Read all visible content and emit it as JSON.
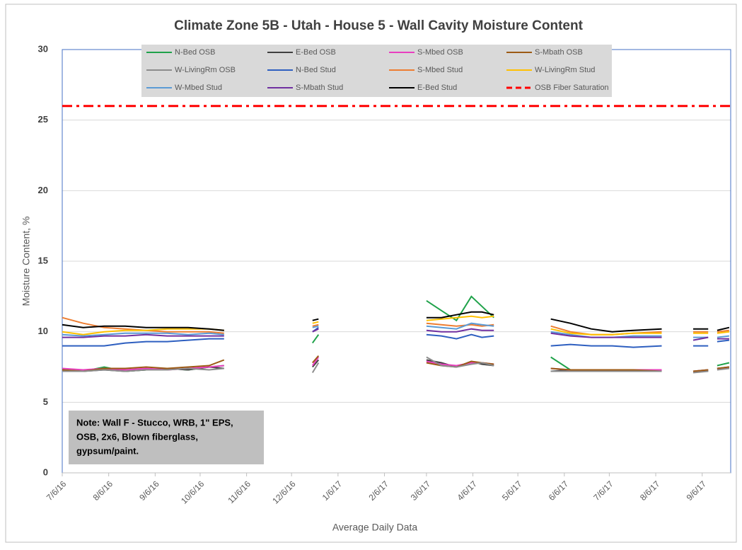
{
  "chart_data": {
    "type": "line",
    "title": "Climate Zone 5B - Utah - House 5 - Wall Cavity Moisture Content",
    "x_label": "Average Daily Data",
    "y_label": "Moisture Content, %",
    "note": [
      "Note: Wall F - Stucco, WRB, 1\" EPS,",
      "OSB, 2x6, Blown fiberglass,",
      "gypsum/paint."
    ],
    "x": [
      "2016-07-06",
      "2016-07-20",
      "2016-08-03",
      "2016-08-17",
      "2016-08-31",
      "2016-09-14",
      "2016-09-28",
      "2016-10-12",
      "2016-10-22",
      "2016-11-20",
      "2016-12-20",
      "2016-12-24",
      "2017-02-01",
      "2017-03-06",
      "2017-03-16",
      "2017-03-26",
      "2017-04-05",
      "2017-04-12",
      "2017-04-20",
      "2017-05-10",
      "2017-05-28",
      "2017-06-10",
      "2017-06-24",
      "2017-07-08",
      "2017-07-22",
      "2017-08-10",
      "2017-08-20",
      "2017-08-31",
      "2017-09-10",
      "2017-09-13",
      "2017-09-16",
      "2017-09-24"
    ],
    "xlim": [
      "2016-07-06",
      "2017-09-25"
    ],
    "xticks": [
      {
        "value": "2016-07-06",
        "label": "7/6/16"
      },
      {
        "value": "2016-08-06",
        "label": "8/6/16"
      },
      {
        "value": "2016-09-06",
        "label": "9/6/16"
      },
      {
        "value": "2016-10-06",
        "label": "10/6/16"
      },
      {
        "value": "2016-11-06",
        "label": "11/6/16"
      },
      {
        "value": "2016-12-06",
        "label": "12/6/16"
      },
      {
        "value": "2017-01-06",
        "label": "1/6/17"
      },
      {
        "value": "2017-02-06",
        "label": "2/6/17"
      },
      {
        "value": "2017-03-06",
        "label": "3/6/17"
      },
      {
        "value": "2017-04-06",
        "label": "4/6/17"
      },
      {
        "value": "2017-05-06",
        "label": "5/6/17"
      },
      {
        "value": "2017-06-06",
        "label": "6/6/17"
      },
      {
        "value": "2017-07-06",
        "label": "7/6/17"
      },
      {
        "value": "2017-08-06",
        "label": "8/6/17"
      },
      {
        "value": "2017-09-06",
        "label": "9/6/17"
      }
    ],
    "ylim": [
      0,
      30
    ],
    "yticks": [
      0,
      5,
      10,
      15,
      20,
      25,
      30
    ],
    "grid": true,
    "series": [
      {
        "name": "N-Bed OSB",
        "color": "#1fa24a",
        "values": [
          7.3,
          7.2,
          7.5,
          7.2,
          7.3,
          7.4,
          7.3,
          7.5,
          7.6,
          null,
          9.2,
          9.8,
          null,
          12.2,
          11.5,
          10.8,
          12.5,
          11.8,
          11.0,
          null,
          8.2,
          7.3,
          7.2,
          7.2,
          7.3,
          7.2,
          null,
          7.2,
          7.3,
          null,
          7.6,
          7.8
        ]
      },
      {
        "name": "E-Bed OSB",
        "color": "#404040",
        "values": [
          7.2,
          7.2,
          7.3,
          7.2,
          7.3,
          7.4,
          7.3,
          7.5,
          7.4,
          null,
          7.5,
          8.0,
          null,
          8.0,
          7.8,
          7.5,
          7.9,
          7.7,
          7.6,
          null,
          7.2,
          7.3,
          7.2,
          7.2,
          7.3,
          7.2,
          null,
          7.2,
          7.2,
          null,
          7.4,
          7.5
        ]
      },
      {
        "name": "S-Mbed OSB",
        "color": "#e83fbf",
        "values": [
          7.4,
          7.3,
          7.4,
          7.3,
          7.4,
          7.3,
          7.4,
          7.5,
          7.6,
          null,
          7.6,
          8.2,
          null,
          7.9,
          7.7,
          7.6,
          7.8,
          7.8,
          7.7,
          null,
          7.4,
          7.3,
          7.3,
          7.3,
          7.3,
          7.3,
          null,
          7.2,
          7.3,
          null,
          7.4,
          7.4
        ]
      },
      {
        "name": "S-Mbath OSB",
        "color": "#9c5a14",
        "values": [
          7.3,
          7.2,
          7.4,
          7.4,
          7.5,
          7.4,
          7.5,
          7.6,
          8.0,
          null,
          7.8,
          8.3,
          null,
          7.8,
          7.6,
          7.5,
          7.9,
          7.8,
          7.7,
          null,
          7.4,
          7.3,
          7.3,
          7.3,
          7.3,
          7.2,
          null,
          7.2,
          7.3,
          null,
          7.4,
          7.5
        ]
      },
      {
        "name": "W-LivingRm OSB",
        "color": "#8c8c8c",
        "values": [
          7.2,
          7.2,
          7.3,
          7.2,
          7.3,
          7.3,
          7.4,
          7.3,
          7.4,
          null,
          7.1,
          7.8,
          null,
          8.2,
          7.6,
          7.5,
          7.7,
          7.8,
          7.6,
          null,
          7.2,
          7.2,
          7.2,
          7.2,
          7.2,
          7.2,
          null,
          7.1,
          7.2,
          null,
          7.3,
          7.4
        ]
      },
      {
        "name": "N-Bed Stud",
        "color": "#2e5fc0",
        "values": [
          9.0,
          9.0,
          9.0,
          9.2,
          9.3,
          9.3,
          9.4,
          9.5,
          9.5,
          null,
          10.0,
          10.3,
          null,
          9.8,
          9.7,
          9.5,
          9.8,
          9.6,
          9.7,
          null,
          9.0,
          9.1,
          9.0,
          9.0,
          8.9,
          9.0,
          null,
          9.0,
          9.0,
          null,
          9.3,
          9.4
        ]
      },
      {
        "name": "S-Mbed Stud",
        "color": "#ed7d31",
        "values": [
          11.0,
          10.6,
          10.3,
          10.2,
          10.1,
          10.0,
          10.0,
          10.0,
          9.9,
          null,
          10.4,
          10.5,
          null,
          10.6,
          10.5,
          10.4,
          10.5,
          10.4,
          10.5,
          null,
          10.4,
          10.0,
          9.8,
          9.8,
          9.9,
          10.0,
          null,
          10.0,
          10.0,
          null,
          10.0,
          10.1
        ]
      },
      {
        "name": "W-LivingRm Stud",
        "color": "#ffc000",
        "values": [
          10.0,
          9.8,
          10.0,
          10.1,
          10.1,
          10.2,
          10.2,
          10.2,
          10.1,
          null,
          10.6,
          10.7,
          null,
          10.8,
          10.9,
          11.0,
          11.1,
          11.0,
          11.1,
          null,
          10.2,
          9.9,
          9.8,
          9.8,
          9.9,
          9.9,
          null,
          9.9,
          9.9,
          null,
          9.9,
          10.0
        ]
      },
      {
        "name": "W-Mbed Stud",
        "color": "#5b9bd5",
        "values": [
          9.8,
          9.7,
          9.8,
          9.9,
          9.9,
          9.9,
          9.8,
          9.9,
          9.8,
          null,
          10.3,
          10.4,
          null,
          10.4,
          10.3,
          10.2,
          10.6,
          10.5,
          10.4,
          null,
          10.0,
          9.8,
          9.6,
          9.6,
          9.7,
          9.7,
          null,
          9.6,
          9.6,
          null,
          9.6,
          9.7
        ]
      },
      {
        "name": "S-Mbath Stud",
        "color": "#7030a0",
        "values": [
          9.6,
          9.6,
          9.7,
          9.7,
          9.8,
          9.7,
          9.7,
          9.7,
          9.7,
          null,
          10.0,
          10.2,
          null,
          10.1,
          10.0,
          10.0,
          10.2,
          10.1,
          10.1,
          null,
          9.9,
          9.7,
          9.6,
          9.6,
          9.6,
          9.6,
          null,
          9.4,
          9.6,
          null,
          9.5,
          9.5
        ]
      },
      {
        "name": "E-Bed Stud",
        "color": "#000000",
        "values": [
          10.5,
          10.3,
          10.4,
          10.4,
          10.3,
          10.3,
          10.3,
          10.2,
          10.1,
          null,
          10.8,
          10.9,
          null,
          11.0,
          11.0,
          11.2,
          11.4,
          11.4,
          11.2,
          null,
          10.9,
          10.6,
          10.2,
          10.0,
          10.1,
          10.2,
          null,
          10.2,
          10.2,
          null,
          10.1,
          10.3
        ]
      }
    ],
    "reference_lines": [
      {
        "name": "OSB Fiber Saturation",
        "value": 26,
        "color": "#ff0000",
        "dash": true
      }
    ]
  }
}
